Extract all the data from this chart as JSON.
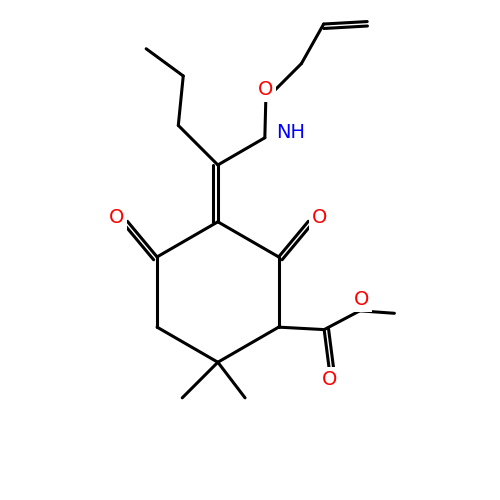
{
  "background_color": "#ffffff",
  "bond_color": "#000000",
  "bond_width": 2.2,
  "atom_colors": {
    "O": "#ff0000",
    "N": "#0000ff",
    "C": "#000000"
  }
}
